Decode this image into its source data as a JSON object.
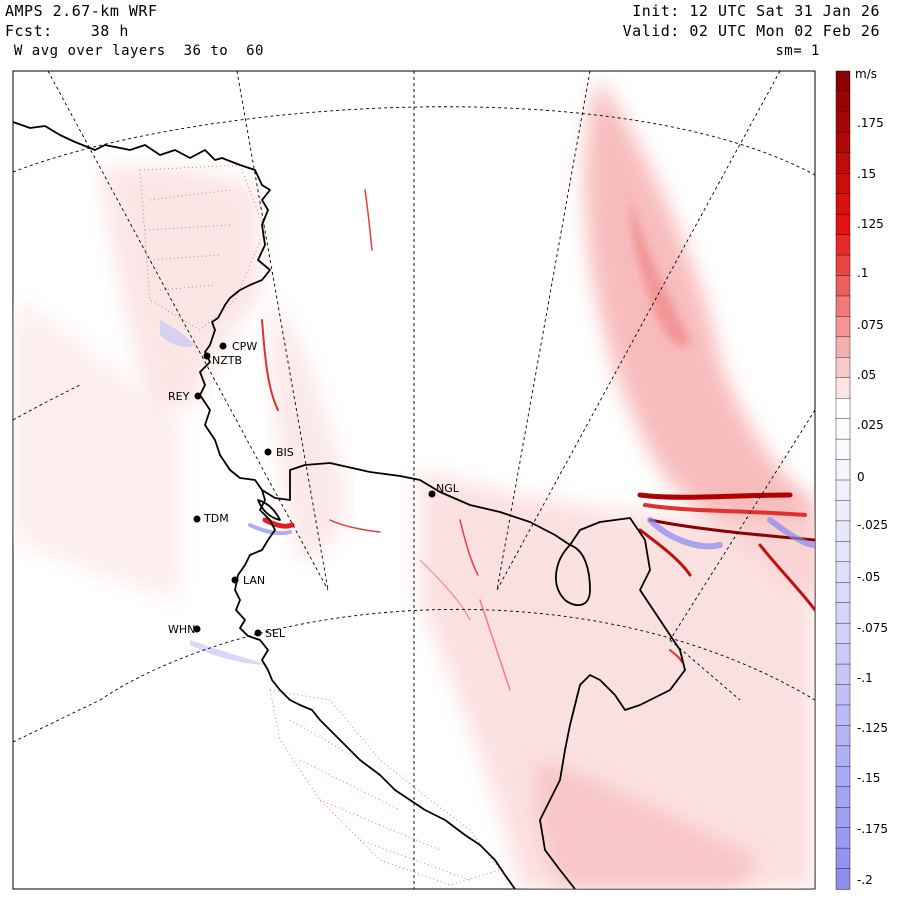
{
  "header": {
    "model": "AMPS 2.67-km WRF",
    "forecast": "Fcst:    38 h",
    "field": " W avg over layers  36 to  60",
    "init": "Init: 12 UTC Sat 31 Jan 26",
    "valid": "Valid: 02 UTC Mon 02 Feb 26",
    "smoothing": "sm= 1"
  },
  "colorbar": {
    "units": "m/s",
    "tick_labels": [
      ".175",
      ".15",
      ".125",
      ".1",
      ".075",
      ".05",
      ".025",
      "0",
      "-.025",
      "-.05",
      "-.075",
      "-.1",
      "-.125",
      "-.15",
      "-.175",
      "-.2"
    ],
    "max_color": "#8b0000",
    "zero_color": "#ffffff",
    "min_color": "#8888ee"
  },
  "stations": [
    {
      "id": "CPW"
    },
    {
      "id": "NZTB"
    },
    {
      "id": "REY"
    },
    {
      "id": "BIS"
    },
    {
      "id": "NGL"
    },
    {
      "id": "TDM"
    },
    {
      "id": "LAN"
    },
    {
      "id": "WHN"
    },
    {
      "id": "SEL"
    }
  ]
}
